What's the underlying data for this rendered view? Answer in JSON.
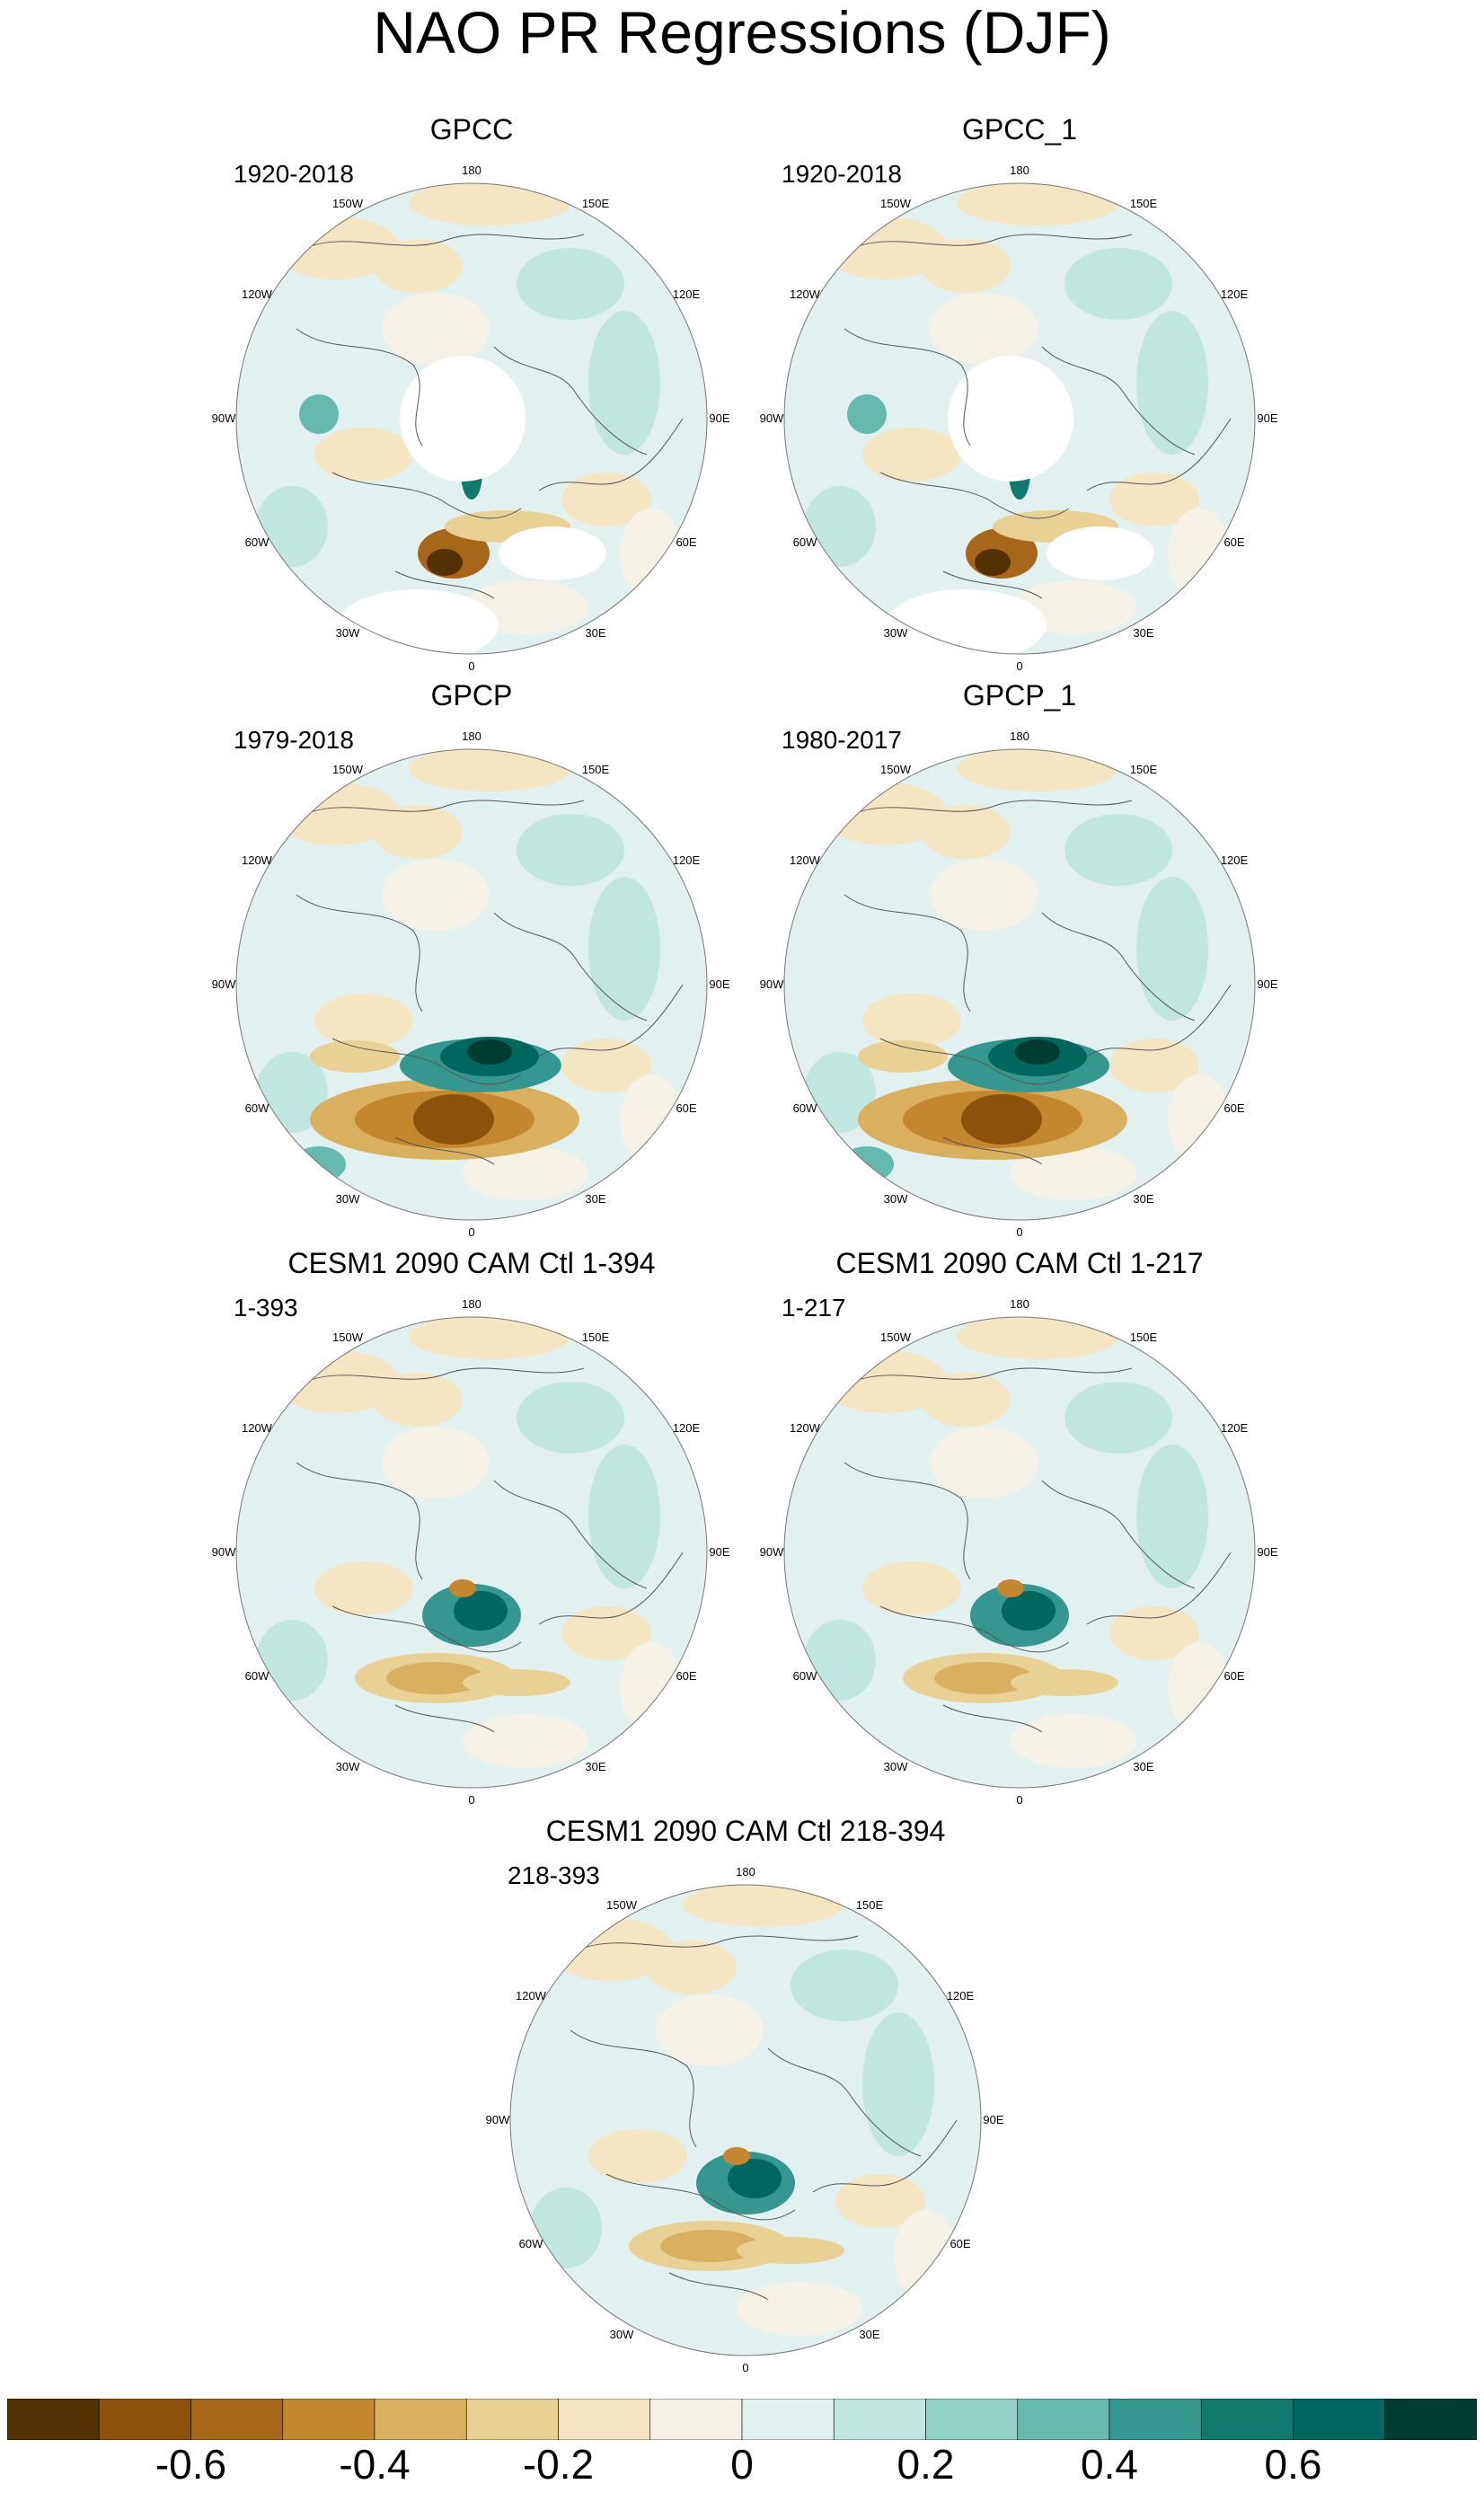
{
  "title": "NAO PR Regressions (DJF)",
  "panels": [
    {
      "title": "GPCC",
      "range": "1920-2018"
    },
    {
      "title": "GPCC_1",
      "range": "1920-2018"
    },
    {
      "title": "GPCP",
      "range": "1979-2018"
    },
    {
      "title": "GPCP_1",
      "range": "1980-2017"
    },
    {
      "title": "CESM1 2090 CAM Ctl 1-394",
      "range": "1-393"
    },
    {
      "title": "CESM1 2090 CAM Ctl 1-217",
      "range": "1-217"
    },
    {
      "title": "CESM1 2090 CAM Ctl 218-394",
      "range": "218-393"
    }
  ],
  "longitude_labels": [
    "180",
    "150E",
    "120E",
    "90E",
    "60E",
    "30E",
    "0",
    "30W",
    "60W",
    "90W",
    "120W",
    "150W"
  ],
  "colorbar": {
    "colors": [
      "#543005",
      "#8c510a",
      "#a8661b",
      "#c4862e",
      "#d9b060",
      "#e9d196",
      "#f4e6c3",
      "#f5f1e6",
      "#e2f0ef",
      "#c0e6e0",
      "#93d2c7",
      "#66b9ad",
      "#35978f",
      "#13786e",
      "#01665e",
      "#003c30"
    ],
    "labels": [
      "-0.6",
      "-0.4",
      "-0.2",
      "0",
      "0.2",
      "0.4",
      "0.6"
    ]
  }
}
